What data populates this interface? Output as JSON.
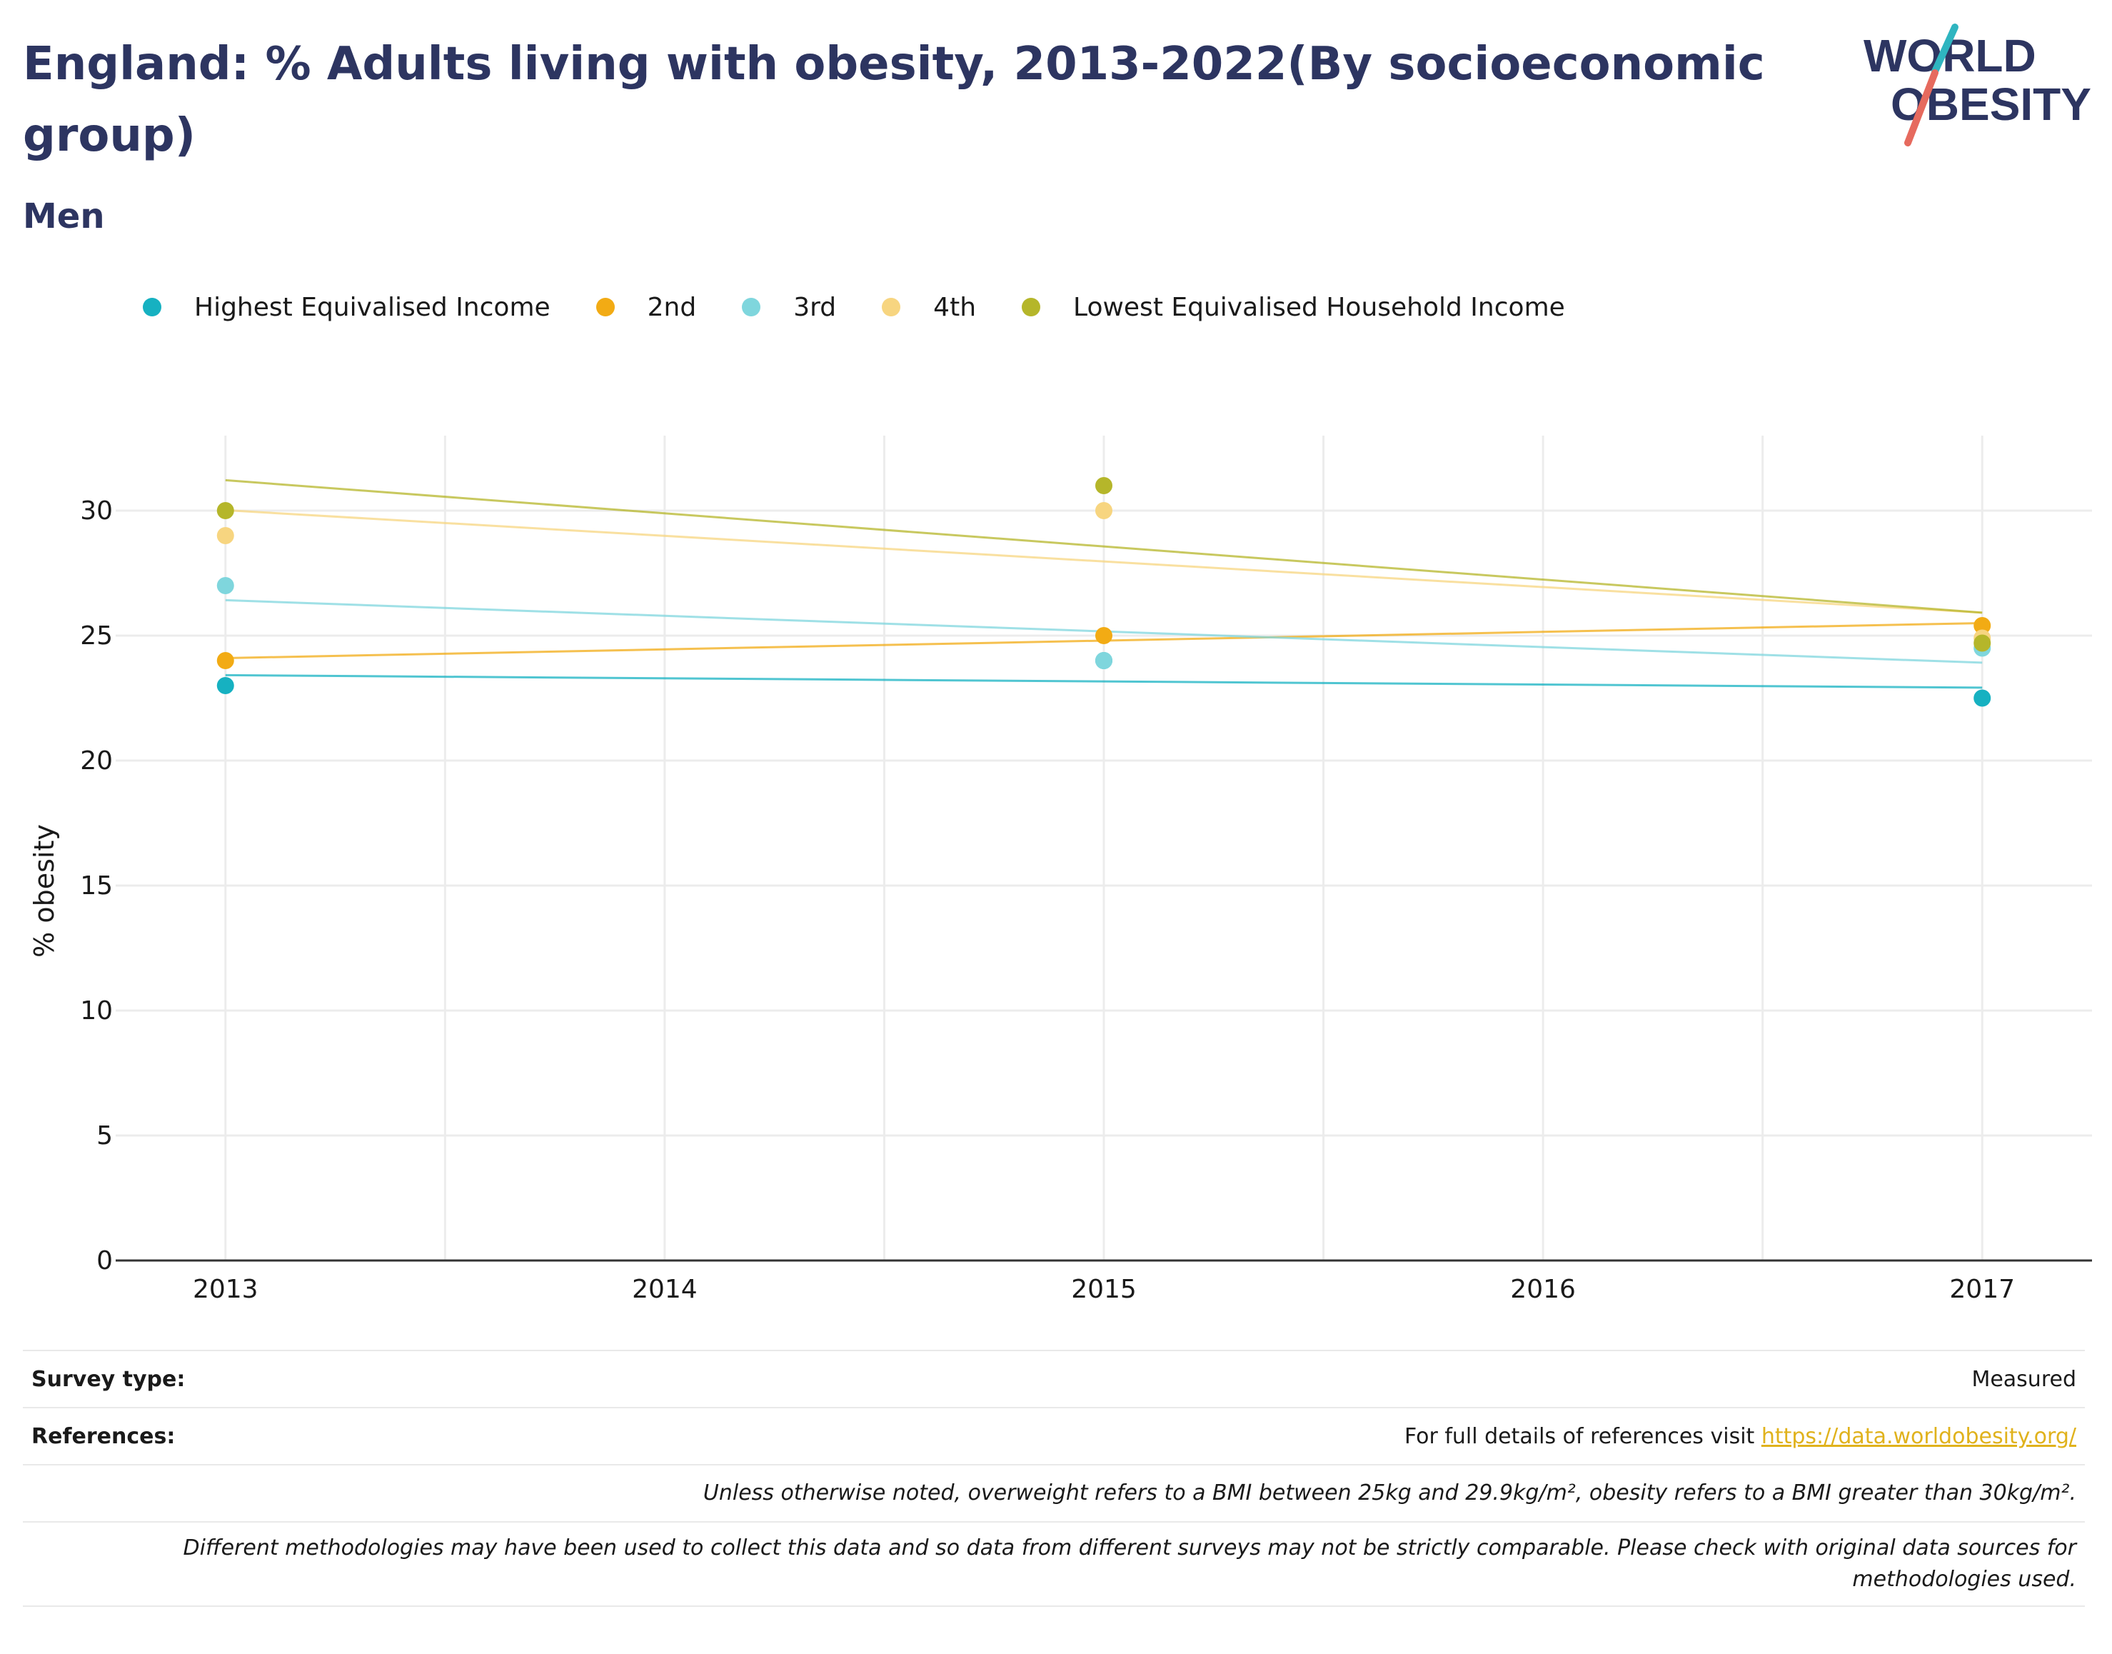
{
  "header": {
    "title": "England: % Adults living with obesity, 2013-2022(By socioeconomic group)",
    "subtitle": "Men",
    "logo_line1": "WORLD",
    "logo_line2": "OBESITY"
  },
  "chart_data": {
    "type": "scatter",
    "title": "England: % Adults living with obesity, 2013-2022(By socioeconomic group)",
    "subtitle": "Men",
    "xlabel": "",
    "ylabel": "% obesity",
    "xlim": [
      2012.75,
      2017.25
    ],
    "ylim": [
      0,
      33
    ],
    "x_ticks": [
      2013,
      2014,
      2015,
      2016,
      2017
    ],
    "y_ticks": [
      0,
      5,
      10,
      15,
      20,
      25,
      30
    ],
    "grid": true,
    "legend_position": "top",
    "trendlines": true,
    "series": [
      {
        "name": "Highest Equivalised Income",
        "color": "#16b1c1",
        "points": [
          {
            "x": 2013,
            "y": 23
          },
          {
            "x": 2015,
            "y": 24
          },
          {
            "x": 2017,
            "y": 22.5
          }
        ]
      },
      {
        "name": "2nd",
        "color": "#f2ab14",
        "points": [
          {
            "x": 2013,
            "y": 24
          },
          {
            "x": 2015,
            "y": 25
          },
          {
            "x": 2017,
            "y": 25.4
          }
        ]
      },
      {
        "name": "3rd",
        "color": "#7fd6dd",
        "points": [
          {
            "x": 2013,
            "y": 27
          },
          {
            "x": 2015,
            "y": 24
          },
          {
            "x": 2017,
            "y": 24.5
          }
        ]
      },
      {
        "name": "4th",
        "color": "#f7d580",
        "points": [
          {
            "x": 2013,
            "y": 29
          },
          {
            "x": 2015,
            "y": 30
          },
          {
            "x": 2017,
            "y": 24.9
          }
        ]
      },
      {
        "name": "Lowest Equivalised Household Income",
        "color": "#b5b62a",
        "points": [
          {
            "x": 2013,
            "y": 30
          },
          {
            "x": 2015,
            "y": 31
          },
          {
            "x": 2017,
            "y": 24.7
          }
        ]
      }
    ]
  },
  "footer": {
    "survey_label": "Survey type:",
    "survey_value": "Measured",
    "references_label": "References:",
    "references_text": "For full details of references visit ",
    "references_link": "https://data.worldobesity.org/",
    "note1": "Unless otherwise noted, overweight refers to a BMI between 25kg and 29.9kg/m², obesity refers to a BMI greater than 30kg/m².",
    "note2": "Different methodologies may have been used to collect this data and so data from different surveys may not be strictly comparable. Please check with original data sources for methodologies used."
  }
}
